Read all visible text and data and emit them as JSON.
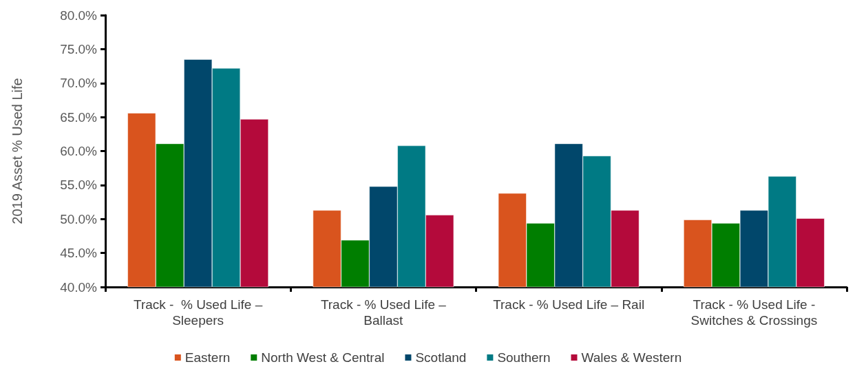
{
  "chart_data": {
    "type": "bar",
    "ylabel": "2019 Asset % Used Life",
    "categories": [
      "Track -  % Used Life –\nSleepers",
      "Track - % Used Life –\nBallast",
      "Track - % Used Life – Rail",
      "Track - % Used Life -\nSwitches & Crossings"
    ],
    "series": [
      {
        "name": "Eastern",
        "color": "#d9541e",
        "values": [
          65.6,
          51.3,
          53.8,
          49.9
        ]
      },
      {
        "name": "North West & Central",
        "color": "#007e00",
        "values": [
          61.1,
          46.9,
          49.4,
          49.4
        ]
      },
      {
        "name": "Scotland",
        "color": "#01476b",
        "values": [
          73.5,
          54.8,
          61.1,
          51.3
        ]
      },
      {
        "name": "Southern",
        "color": "#007a84",
        "values": [
          72.2,
          60.8,
          59.3,
          56.3
        ]
      },
      {
        "name": "Wales & Western",
        "color": "#b40a3b",
        "values": [
          64.7,
          50.6,
          51.3,
          50.1
        ]
      }
    ],
    "ylim": [
      40,
      80
    ],
    "yticks": [
      {
        "value": 40,
        "label": "40.0%"
      },
      {
        "value": 45,
        "label": "45.0%"
      },
      {
        "value": 50,
        "label": "50.0%"
      },
      {
        "value": 55,
        "label": "55.0%"
      },
      {
        "value": 60,
        "label": "60.0%"
      },
      {
        "value": 65,
        "label": "65.0%"
      },
      {
        "value": 70,
        "label": "70.0%"
      },
      {
        "value": 75,
        "label": "75.0%"
      },
      {
        "value": 80,
        "label": "80.0%"
      }
    ],
    "grid": false,
    "legend": "bottom"
  }
}
